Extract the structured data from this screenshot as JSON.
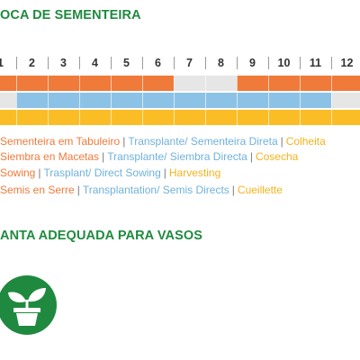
{
  "section_sowing": {
    "title": "OCA DE SEMENTEIRA"
  },
  "months": [
    "1",
    "2",
    "3",
    "4",
    "5",
    "6",
    "7",
    "8",
    "9",
    "10",
    "11",
    "12"
  ],
  "rows": [
    {
      "name": "sowing-tray",
      "color": "#f07a3a",
      "empty_color": "#e6e6e6",
      "months_active": [
        1,
        2,
        3,
        4,
        5,
        6,
        9,
        10,
        11,
        12
      ]
    },
    {
      "name": "transplant",
      "color": "#8cc2e6",
      "empty_color": "#e6e6e6",
      "months_active": [
        2,
        3,
        4,
        5,
        6,
        7,
        8,
        9,
        10,
        11
      ]
    },
    {
      "name": "harvest",
      "color": "#fbbd26",
      "empty_color": "#e6e6e6",
      "months_active": [
        1,
        2,
        3,
        4,
        5,
        6,
        7,
        8,
        9,
        10,
        11,
        12
      ]
    }
  ],
  "legend": [
    [
      "Sementeira em Tabuleiro",
      "Transplante/ Sementeira Direta",
      "Colheita"
    ],
    [
      "Siembra en Macetas",
      "Transplante/ Siembra Directa",
      "Cosecha"
    ],
    [
      "Sowing",
      "Trasplant/ Direct Sowing",
      "Harvesting"
    ],
    [
      "Semis en Serre",
      "Transplantation/ Semis Directs",
      "Cueillette"
    ]
  ],
  "colors": {
    "sowing": "#f07a3a",
    "transplant": "#8cc2e6",
    "harvest": "#fbbd26",
    "heading": "#1f8a3f",
    "icon_bg": "#1f8a3f"
  },
  "section_pots": {
    "title": "ANTA ADEQUADA PARA VASOS",
    "icon": "potted-plant-icon"
  }
}
